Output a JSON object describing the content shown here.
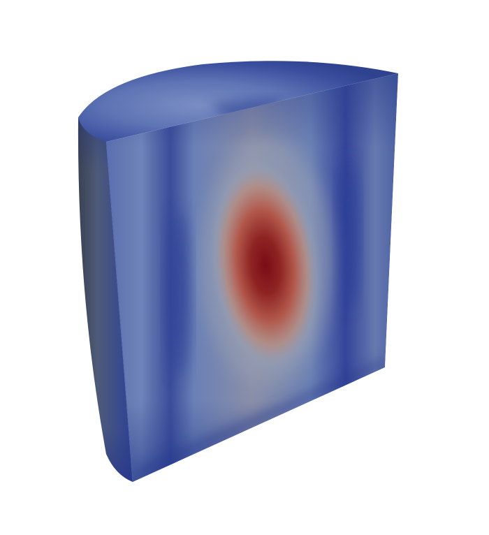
{
  "scene": {
    "background_color": "#ffffff",
    "object": "half-cylinder-cutaway",
    "colormap": {
      "low": "#3a4fa0",
      "mid_low": "#5f78b5",
      "mid": "#9a9aa0",
      "mid_high": "#c86a55",
      "high": "#7e0f1a"
    },
    "shading": {
      "dark_edge": "#222f66",
      "left_side_dark": "#3d4451",
      "left_side_light": "#6a7fae"
    }
  }
}
